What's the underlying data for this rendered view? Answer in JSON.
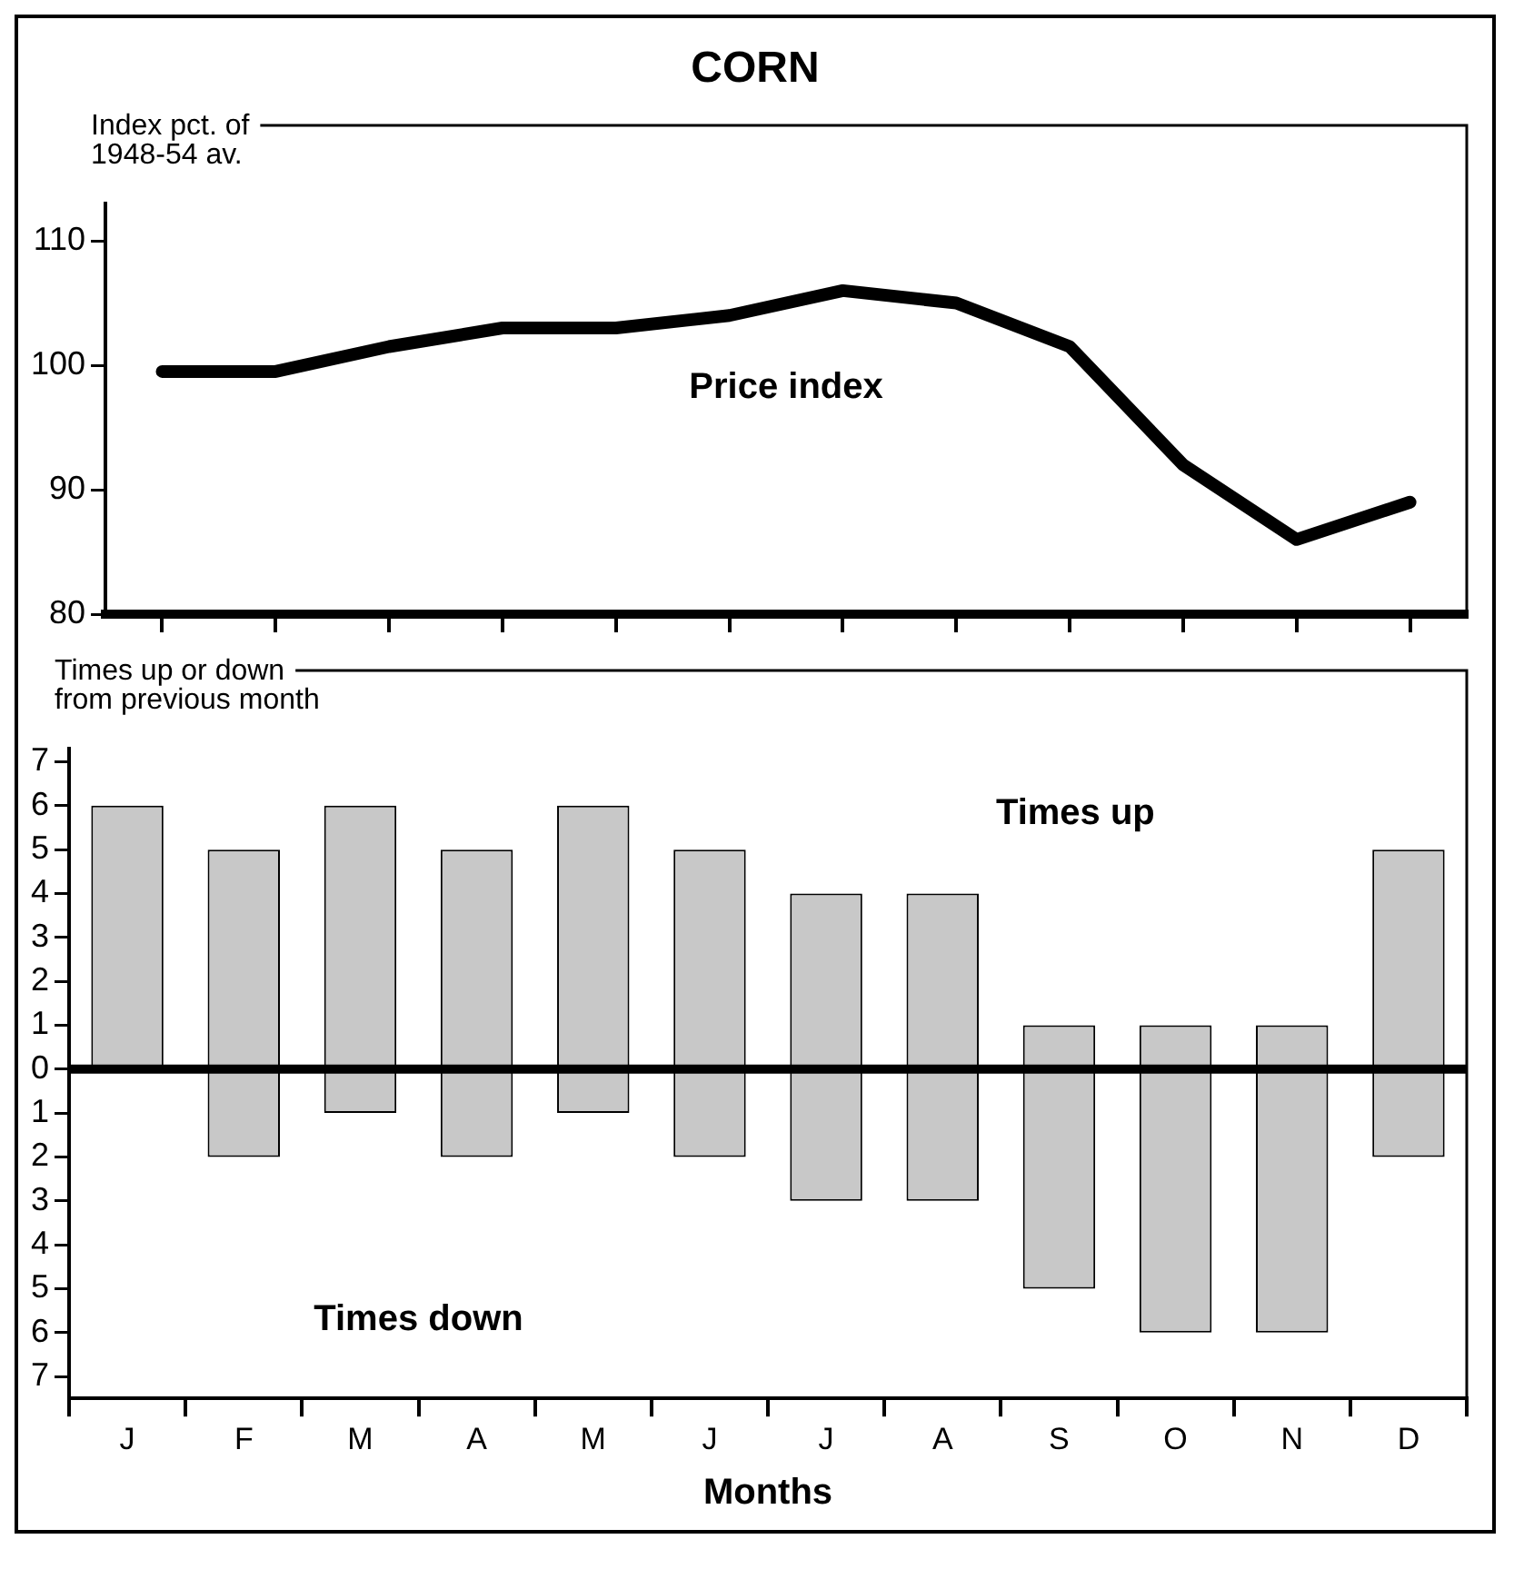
{
  "chart_data": [
    {
      "type": "line",
      "title": "CORN",
      "ylabel": "Index pct. of\n1948-54 av.",
      "categories": [
        null,
        null,
        null,
        null,
        null,
        null,
        null,
        null,
        null,
        null,
        null,
        null
      ],
      "series": [
        {
          "color": "#000000",
          "values": [
            99.5,
            99.5,
            101.5,
            103,
            103,
            104,
            106,
            105,
            101.5,
            92,
            86,
            89
          ]
        }
      ],
      "ylim": [
        80,
        113
      ],
      "yticks": [
        80,
        90,
        100,
        110
      ],
      "tick_labels": "y",
      "grid": false,
      "legend": false,
      "marker": "none",
      "line_style": "solid",
      "annotations": [
        "Price index"
      ]
    },
    {
      "type": "bar",
      "stacked": true,
      "ylabel": "Times up or down\nfrom previous month",
      "xlabel": "Months",
      "categories": [
        "J",
        "F",
        "M",
        "A",
        "M",
        "J",
        "J",
        "A",
        "S",
        "O",
        "N",
        "D"
      ],
      "series": [
        {
          "color": "#c8c8c8",
          "values": [
            6,
            5,
            6,
            5,
            6,
            5,
            4,
            4,
            1,
            1,
            1,
            5
          ]
        },
        {
          "color": "#c8c8c8",
          "values": [
            0,
            -2,
            -1,
            -2,
            -1,
            -2,
            -3,
            -3,
            -5,
            -6,
            -6,
            -2
          ]
        }
      ],
      "ylim": [
        -7.5,
        7.3
      ],
      "yticks": [
        {
          "value": -7,
          "label": "7"
        },
        {
          "value": -6,
          "label": "6"
        },
        {
          "value": -5,
          "label": "5"
        },
        {
          "value": -4,
          "label": "4"
        },
        {
          "value": -3,
          "label": "3"
        },
        {
          "value": -2,
          "label": "2"
        },
        {
          "value": -1,
          "label": "1"
        },
        0,
        1,
        2,
        3,
        4,
        5,
        6,
        7
      ],
      "ref_lines": [
        {
          "axis": "y",
          "value": 0,
          "color": "#000000"
        }
      ],
      "grid": false,
      "legend": false,
      "annotations": [
        "Times up",
        "Times down"
      ]
    }
  ]
}
